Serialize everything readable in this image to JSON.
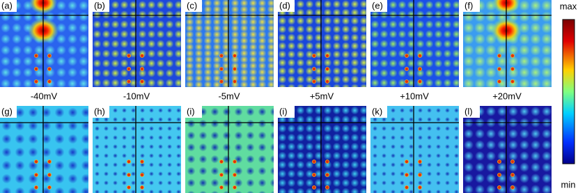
{
  "panels": [
    {
      "label": "(a)"
    },
    {
      "label": "(b)"
    },
    {
      "label": "(c)"
    },
    {
      "label": "(d)"
    },
    {
      "label": "(e)"
    },
    {
      "label": "(f)"
    },
    {
      "label": "(g)"
    },
    {
      "label": "(h)"
    },
    {
      "label": "(i)"
    },
    {
      "label": "(i)"
    },
    {
      "label": "(k)"
    },
    {
      "label": "(l)"
    }
  ],
  "voltages": [
    "-40mV",
    "-10mV",
    "-5mV",
    "+5mV",
    "+10mV",
    "+20mV"
  ],
  "colorbar": {
    "max_label": "max",
    "min_label": "min"
  }
}
